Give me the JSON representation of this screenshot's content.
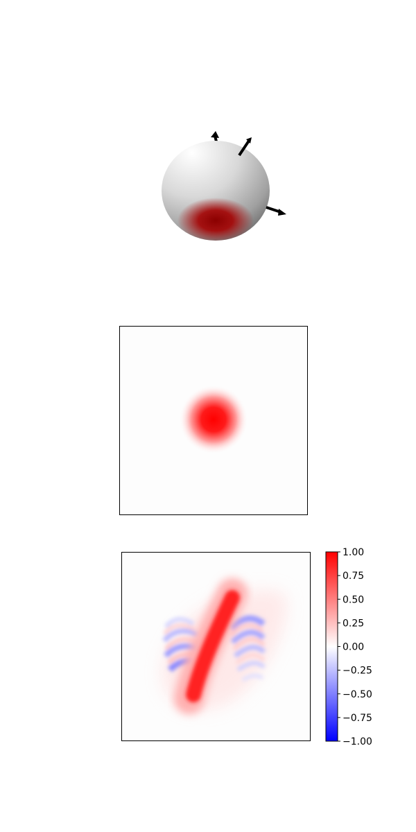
{
  "chart_data": [
    {
      "type": "other",
      "kind": "bloch-sphere-3d",
      "colors": {
        "sphere_light": "#f4f4f4",
        "sphere_dark": "#6a6a6a",
        "highlight": "#8b0000",
        "arrows": "#000000"
      },
      "arrows": 3
    },
    {
      "type": "heatmap",
      "kind": "wigner-function",
      "pattern": "centered gaussian blob",
      "peak_value": 1.0,
      "colormap": "bwr",
      "ticks": "none"
    },
    {
      "type": "heatmap",
      "kind": "wigner-function-evolved",
      "pattern": "sheared gaussian with interference fringes",
      "peak_value": 1.0,
      "min_value": -0.25,
      "colormap": "bwr",
      "ticks": "none"
    }
  ],
  "colorbar": {
    "min": -1.0,
    "max": 1.0,
    "colormap": [
      "#0000ff",
      "#ffffff",
      "#ff0000"
    ],
    "ticks": [
      "1.00",
      "0.75",
      "0.50",
      "0.25",
      "0.00",
      "−0.25",
      "−0.50",
      "−0.75",
      "−1.00"
    ]
  }
}
